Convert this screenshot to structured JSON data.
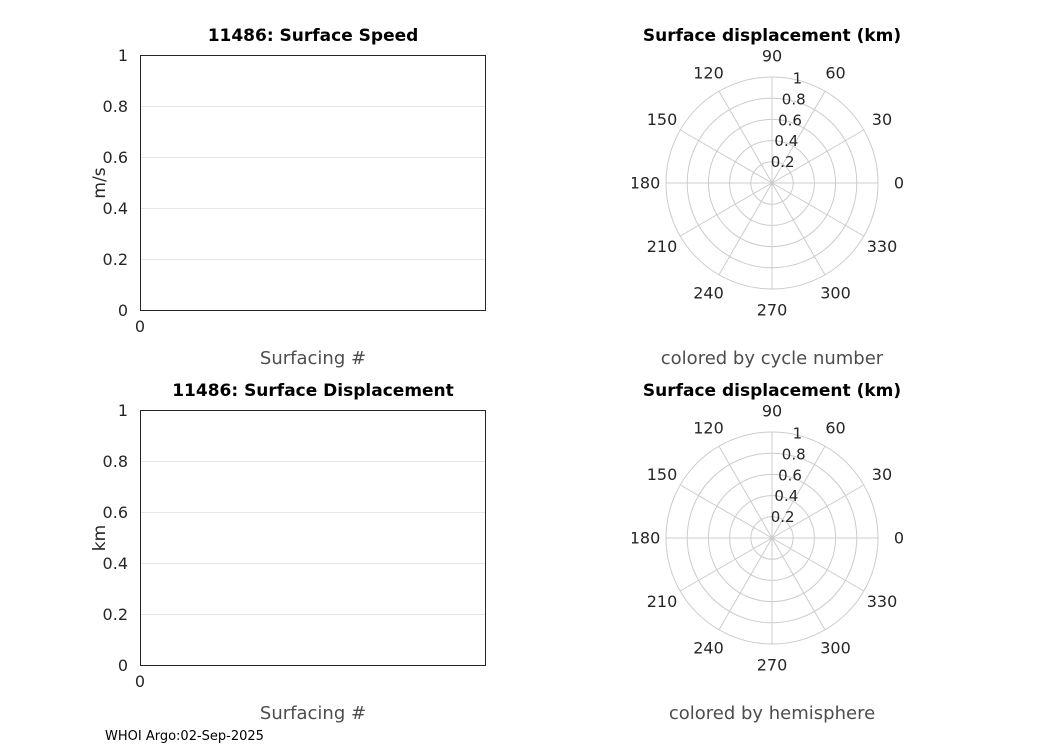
{
  "page": {
    "footer": "WHOI Argo:02-Sep-2025",
    "background_color": "#ffffff",
    "grid_color": "#e6e6e6",
    "polar_grid_color": "#cccccc",
    "axis_color": "#262626",
    "label_color": "#4d4d4d"
  },
  "chart_data": [
    {
      "type": "line",
      "title": "11486: Surface Speed",
      "xlabel": "Surfacing #",
      "ylabel": "m/s",
      "xlim": [
        0,
        1
      ],
      "ylim": [
        0,
        1
      ],
      "xticks": [
        0
      ],
      "yticks": [
        0,
        0.2,
        0.4,
        0.6,
        0.8,
        1
      ],
      "grid": "horizontal",
      "series": []
    },
    {
      "type": "polar",
      "title": "Surface displacement (km)",
      "subtitle": "colored by cycle number",
      "theta_ticks_deg": [
        0,
        30,
        60,
        90,
        120,
        150,
        180,
        210,
        240,
        270,
        300,
        330
      ],
      "r_ticks": [
        0.2,
        0.4,
        0.6,
        0.8,
        1
      ],
      "rlim": [
        0,
        1
      ],
      "r_label_angle_deg": 80,
      "series": []
    },
    {
      "type": "line",
      "title": "11486: Surface Displacement",
      "xlabel": "Surfacing #",
      "ylabel": "km",
      "xlim": [
        0,
        1
      ],
      "ylim": [
        0,
        1
      ],
      "xticks": [
        0
      ],
      "yticks": [
        0,
        0.2,
        0.4,
        0.6,
        0.8,
        1
      ],
      "grid": "horizontal",
      "series": []
    },
    {
      "type": "polar",
      "title": "Surface displacement (km)",
      "subtitle": "colored by hemisphere",
      "theta_ticks_deg": [
        0,
        30,
        60,
        90,
        120,
        150,
        180,
        210,
        240,
        270,
        300,
        330
      ],
      "r_ticks": [
        0.2,
        0.4,
        0.6,
        0.8,
        1
      ],
      "rlim": [
        0,
        1
      ],
      "r_label_angle_deg": 80,
      "series": []
    }
  ]
}
